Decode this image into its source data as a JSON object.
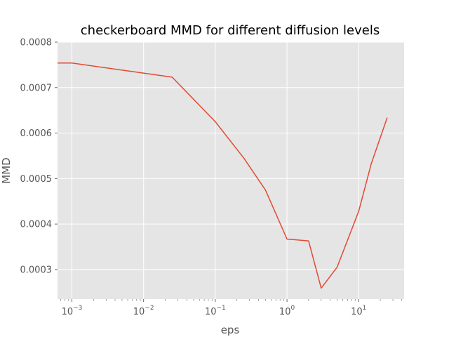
{
  "chart_data": {
    "type": "line",
    "title": "checkerboard MMD for different diffusion levels",
    "xlabel": "eps",
    "ylabel": "MMD",
    "xscale": "log",
    "xlim": [
      0.00063,
      43
    ],
    "ylim": [
      0.000235,
      0.0008
    ],
    "grid": true,
    "x_ticks": [
      {
        "base": "10",
        "exp": "−3",
        "value": 0.001
      },
      {
        "base": "10",
        "exp": "−2",
        "value": 0.01
      },
      {
        "base": "10",
        "exp": "−1",
        "value": 0.1
      },
      {
        "base": "10",
        "exp": "0",
        "value": 1
      },
      {
        "base": "10",
        "exp": "1",
        "value": 10
      }
    ],
    "y_ticks": [
      {
        "label": "0.0003",
        "value": 0.0003
      },
      {
        "label": "0.0004",
        "value": 0.0004
      },
      {
        "label": "0.0005",
        "value": 0.0005
      },
      {
        "label": "0.0006",
        "value": 0.0006
      },
      {
        "label": "0.0007",
        "value": 0.0007
      },
      {
        "label": "0.0008",
        "value": 0.0008
      }
    ],
    "series": [
      {
        "color": "#e24a33",
        "x": [
          0.0005,
          0.001,
          0.025,
          0.1,
          0.25,
          0.5,
          1,
          2,
          3,
          5,
          10,
          15,
          25
        ],
        "y": [
          0.000754,
          0.000754,
          0.000723,
          0.000625,
          0.000545,
          0.000475,
          0.000367,
          0.000363,
          0.000259,
          0.000305,
          0.000428,
          0.000533,
          0.000634
        ]
      }
    ]
  }
}
